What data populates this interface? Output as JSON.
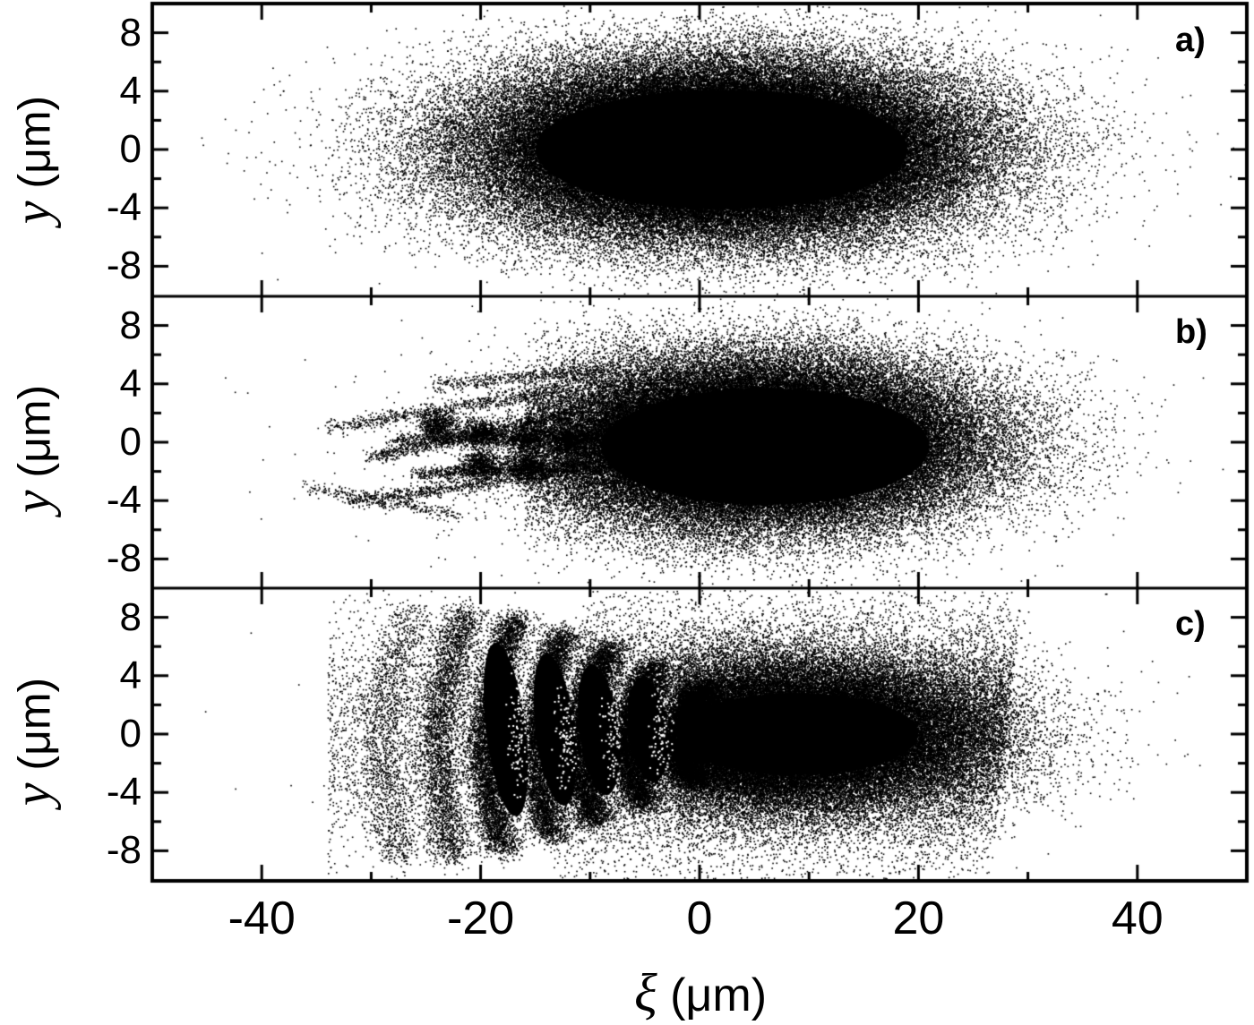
{
  "chart_data": {
    "type": "scatter",
    "title": "",
    "layout": "3 vertically stacked panels sharing x-axis",
    "xlabel": "ξ (μm)",
    "xlabel_symbol": "ξ",
    "xlabel_unit": "(μm)",
    "xlim": [
      -50,
      50
    ],
    "xticks": [
      -40,
      -20,
      0,
      20,
      40
    ],
    "xtick_labels": [
      "-40",
      "-20",
      "0",
      "20",
      "40"
    ],
    "x_minor_tick_step": 10,
    "grid": false,
    "legend": null,
    "panels": [
      {
        "label": "a)",
        "ylabel": "y (μm)",
        "ylabel_symbol": "y",
        "ylabel_unit": "(μm)",
        "ylim": [
          -10,
          10
        ],
        "yticks": [
          8,
          4,
          0,
          -4,
          -8
        ],
        "ytick_labels": [
          "8",
          "4",
          "0",
          "-4",
          "-8"
        ],
        "y_minor_tick_step": 2,
        "description": "Dense elliptical Gaussian-like particle distribution centered near (ξ≈2, y≈0); core spans ξ≈-20..25, y≈-6..6; sparse halo extends to ξ≈-45..40",
        "distribution": {
          "center_xi": 2,
          "center_y": 0,
          "sigma_xi": 11,
          "sigma_y": 2.9,
          "xi_extent": [
            -45,
            40
          ],
          "y_extent": [
            -9,
            9
          ]
        }
      },
      {
        "label": "b)",
        "ylabel": "y (μm)",
        "ylabel_symbol": "y",
        "ylabel_unit": "(μm)",
        "ylim": [
          -10,
          10
        ],
        "yticks": [
          8,
          4,
          0,
          -4,
          -8
        ],
        "ytick_labels": [
          "8",
          "4",
          "0",
          "-4",
          "-8"
        ],
        "y_minor_tick_step": 2,
        "description": "Elliptical core centered near (ξ≈5, y≈0) with filamentary streaks/tails trailing to the left (ξ≈-35..-10) diverging above and below axis",
        "distribution": {
          "center_xi": 5,
          "center_y": 0,
          "sigma_xi": 10,
          "sigma_y": 2.8,
          "xi_extent": [
            -40,
            40
          ],
          "y_extent": [
            -9,
            9
          ],
          "filaments_xi": [
            -35,
            -10
          ]
        }
      },
      {
        "label": "c)",
        "ylabel": "y (μm)",
        "ylabel_symbol": "y",
        "ylabel_unit": "(μm)",
        "ylim": [
          -10,
          10
        ],
        "yticks": [
          8,
          4,
          0,
          -4,
          -8
        ],
        "ytick_labels": [
          "8",
          "4",
          "0",
          "-4",
          "-8"
        ],
        "y_minor_tick_step": 2,
        "description": "Core centered near (ξ≈8, y≈0) with a series of dense crescent/arc-shaped bunches at ξ≈-28,-23,-18,-14,-10,-5,-1 extending to y≈±8, plus sparse scattered particles",
        "distribution": {
          "center_xi": 8,
          "center_y": 0,
          "sigma_xi": 9,
          "sigma_y": 2.5,
          "arc_positions_xi": [
            -28,
            -23,
            -18.5,
            -14,
            -10,
            -5.5,
            -1
          ],
          "xi_extent": [
            -38,
            40
          ],
          "y_extent": [
            -9,
            9
          ]
        }
      }
    ]
  }
}
